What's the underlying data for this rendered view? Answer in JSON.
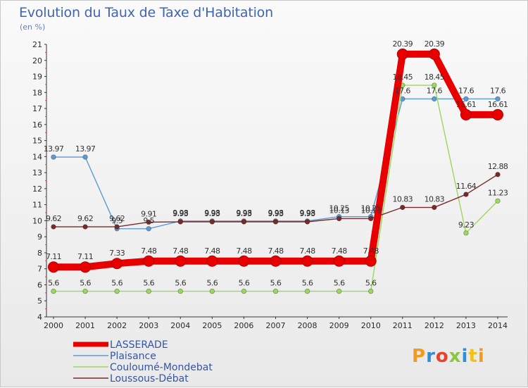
{
  "title": "Evolution du Taux de Taxe d'Habitation",
  "unit_label": "(en %)",
  "logo_text": "Proxiti",
  "chart_data": {
    "type": "line",
    "title": "Evolution du Taux de Taxe d'Habitation",
    "ylabel": "(en %)",
    "xlabel": "",
    "x": [
      "2000",
      "2001",
      "2002",
      "2003",
      "2004",
      "2005",
      "2006",
      "2007",
      "2008",
      "2009",
      "2010",
      "2011",
      "2012",
      "2013",
      "2014"
    ],
    "ylim": [
      4,
      21
    ],
    "yticks": [
      4,
      5,
      6,
      7,
      8,
      9,
      10,
      11,
      12,
      13,
      14,
      15,
      16,
      17,
      18,
      19,
      20,
      21
    ],
    "grid": false,
    "legend_position": "bottom-left",
    "series": [
      {
        "name": "LASSERADE",
        "color": "#e80000",
        "values": [
          7.11,
          7.11,
          7.33,
          7.48,
          7.48,
          7.48,
          7.48,
          7.48,
          7.48,
          7.48,
          7.48,
          20.39,
          20.39,
          16.61,
          16.61
        ],
        "labels": [
          "7.11",
          "7.11",
          "7.33",
          "7.48",
          "7.48",
          "7.48",
          "7.48",
          "7.48",
          "7.48",
          "7.48",
          "7.48",
          "20.39",
          "20.39",
          "16.61",
          "16.61"
        ]
      },
      {
        "name": "Plaisance",
        "color": "#5b9bd5",
        "values": [
          13.97,
          13.97,
          9.5,
          9.5,
          9.98,
          9.98,
          9.98,
          9.98,
          9.98,
          10.25,
          10.25,
          17.6,
          17.6,
          17.6,
          17.6
        ],
        "labels": [
          "13.97",
          "13.97",
          "9.5",
          "9.5",
          "9.98",
          "9.98",
          "9.98",
          "9.98",
          "9.98",
          "10.25",
          "10.25",
          "17.6",
          "17.6",
          "17.6",
          "17.6"
        ]
      },
      {
        "name": "Couloumé-Mondebat",
        "color": "#99d95b",
        "values": [
          5.6,
          5.6,
          5.6,
          5.6,
          5.6,
          5.6,
          5.6,
          5.6,
          5.6,
          5.6,
          5.6,
          18.45,
          18.45,
          9.23,
          11.23
        ],
        "labels": [
          "5.6",
          "5.6",
          "5.6",
          "5.6",
          "5.6",
          "5.6",
          "5.6",
          "5.6",
          "5.6",
          "5.6",
          "5.6",
          "18.45",
          "18.45",
          "9.23",
          "11.23"
        ]
      },
      {
        "name": "Loussous-Débat",
        "color": "#7a2a2a",
        "values": [
          9.62,
          9.62,
          9.62,
          9.91,
          9.93,
          9.93,
          9.93,
          9.93,
          9.93,
          10.13,
          10.13,
          10.83,
          10.83,
          11.64,
          12.88
        ],
        "labels": [
          "9.62",
          "9.62",
          "9.62",
          "9.91",
          "9.93",
          "9.93",
          "9.93",
          "9.93",
          "9.93",
          "10.13",
          "10.13",
          "10.83",
          "10.83",
          "11.64",
          "12.88"
        ]
      }
    ]
  }
}
